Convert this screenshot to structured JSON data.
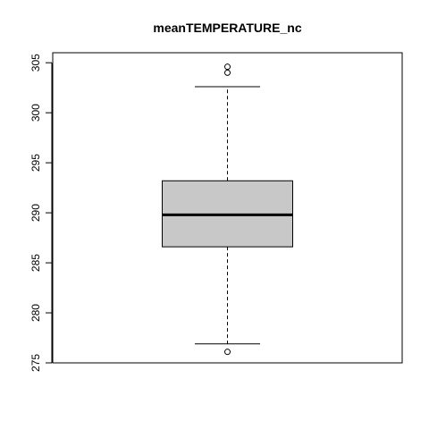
{
  "chart_data": {
    "type": "box",
    "title": "meanTEMPERATURE_nc",
    "xlabel": "",
    "ylabel": "",
    "ylim": [
      275,
      306
    ],
    "yticks": [
      275,
      280,
      285,
      290,
      295,
      300,
      305
    ],
    "box": {
      "whisker_low": 276.9,
      "q1": 286.6,
      "median": 289.8,
      "q3": 293.2,
      "whisker_high": 302.6
    },
    "outliers": [
      276.1,
      304.0,
      304.6
    ],
    "colors": {
      "box_fill": "#c8c8c8",
      "stroke": "#000000"
    }
  }
}
